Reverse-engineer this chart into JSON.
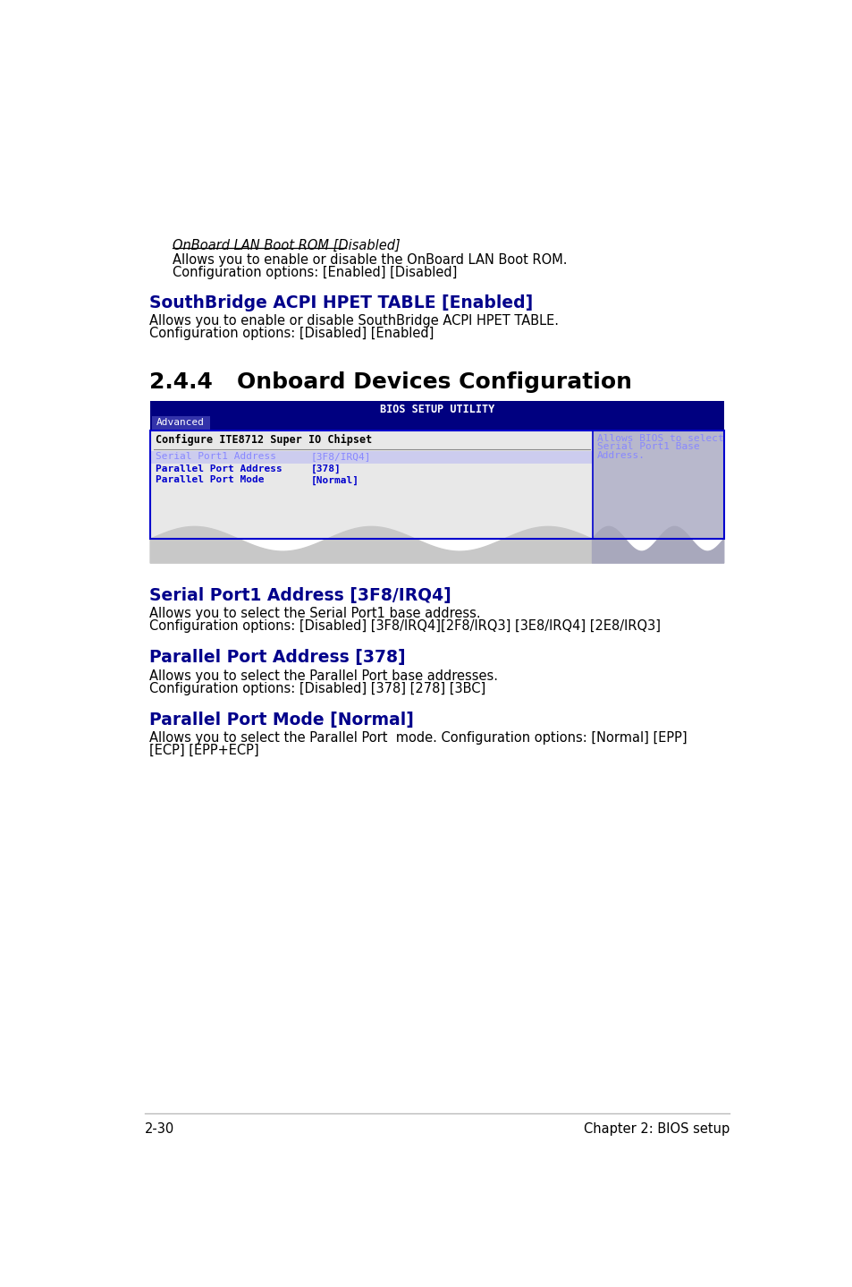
{
  "bg_color": "#ffffff",
  "onboard_lan_title": "OnBoard LAN Boot ROM [Disabled]",
  "onboard_lan_line1": "Allows you to enable or disable the OnBoard LAN Boot ROM.",
  "onboard_lan_line2": "Configuration options: [Enabled] [Disabled]",
  "southbridge_title": "SouthBridge ACPI HPET TABLE [Enabled]",
  "southbridge_line1": "Allows you to enable or disable SouthBridge ACPI HPET TABLE.",
  "southbridge_line2": "Configuration options: [Disabled] [Enabled]",
  "section_244": "2.4.4",
  "section_244_title": "Onboard Devices Configuration",
  "bios_header": "BIOS SETUP UTILITY",
  "bios_tab": "Advanced",
  "bios_configure": "Configure ITE8712 Super IO Chipset",
  "bios_serial": "Serial Port1 Address",
  "bios_serial_val": "[3F8/IRQ4]",
  "bios_parallel_addr": "Parallel Port Address",
  "bios_parallel_addr_val": "[378]",
  "bios_parallel_mode": "Parallel Port Mode",
  "bios_parallel_mode_val": "[Normal]",
  "bios_help_line1": "Allows BIOS to select",
  "bios_help_line2": "Serial Port1 Base",
  "bios_help_line3": "Address.",
  "serial_title": "Serial Port1 Address [3F8/IRQ4]",
  "serial_line1": "Allows you to select the Serial Port1 base address.",
  "serial_line2": "Configuration options: [Disabled] [3F8/IRQ4][2F8/IRQ3] [3E8/IRQ4] [2E8/IRQ3]",
  "parallel_addr_title": "Parallel Port Address [378]",
  "parallel_addr_line1": "Allows you to select the Parallel Port base addresses.",
  "parallel_addr_line2": "Configuration options: [Disabled] [378] [278] [3BC]",
  "parallel_mode_title": "Parallel Port Mode [Normal]",
  "parallel_mode_line1": "Allows you to select the Parallel Port  mode. Configuration options: [Normal] [EPP]",
  "parallel_mode_line2": "[ECP] [EPP+ECP]",
  "footer_left": "2-30",
  "footer_right": "Chapter 2: BIOS setup",
  "dark_blue": "#00008B",
  "medium_blue": "#0000CD",
  "bios_bg": "#000080",
  "bios_text": "#ffffff",
  "bios_purple_text": "#8888ff",
  "black": "#000000"
}
